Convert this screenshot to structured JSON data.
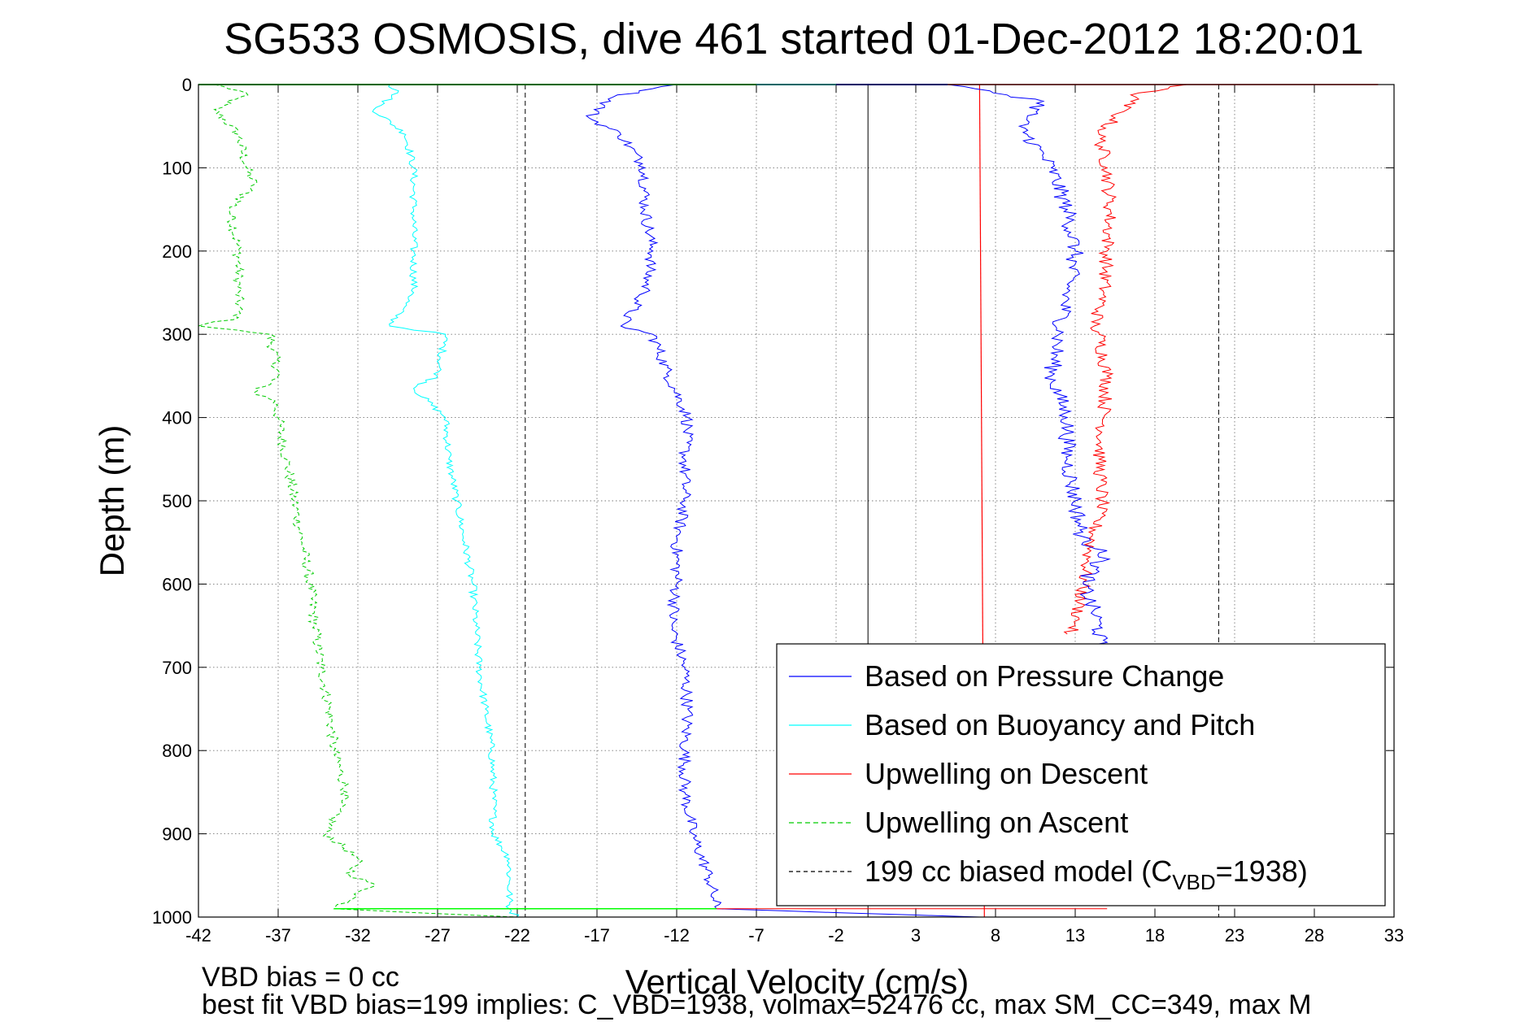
{
  "chart_data": {
    "type": "line",
    "title": "SG533 OSMOSIS, dive 461 started 01-Dec-2012 18:20:01",
    "xlabel": "Vertical Velocity (cm/s)",
    "ylabel": "Depth (m)",
    "xlim": [
      -42,
      33
    ],
    "ylim": [
      0,
      1000
    ],
    "y_reversed": true,
    "grid": true,
    "legend_position": "lower-right",
    "xticks": [
      -42,
      -37,
      -32,
      -27,
      -22,
      -17,
      -12,
      -7,
      -2,
      3,
      8,
      13,
      18,
      23,
      28,
      33
    ],
    "yticks": [
      0,
      100,
      200,
      300,
      400,
      500,
      600,
      700,
      800,
      900,
      1000
    ],
    "series": [
      {
        "name": "Based on Pressure Change",
        "color": "#0000ff",
        "style": "solid",
        "descent": {
          "depth": [
            0,
            15,
            40,
            60,
            100,
            150,
            200,
            250,
            290,
            300,
            350,
            400,
            450,
            500,
            550,
            600,
            650,
            700,
            750,
            800,
            850,
            900,
            950,
            990,
            1000
          ],
          "v": [
            -12,
            -16,
            -17.5,
            -15.5,
            -14,
            -14,
            -13.5,
            -14,
            -15.5,
            -13.5,
            -12.5,
            -11.3,
            -11.5,
            -11.5,
            -12,
            -12,
            -12.3,
            -11.5,
            -11.3,
            -11.5,
            -11.5,
            -11,
            -10,
            -9.5,
            7
          ]
        },
        "ascent": {
          "depth": [
            0,
            20,
            50,
            60,
            100,
            150,
            200,
            250,
            300,
            350,
            400,
            450,
            500,
            550,
            560,
            600,
            650,
            700
          ],
          "v": [
            5,
            11,
            9.5,
            10,
            11.5,
            12.5,
            13,
            12.5,
            12,
            11.5,
            12.5,
            12.5,
            13,
            13.5,
            15,
            13.5,
            14.5,
            14.5
          ]
        }
      },
      {
        "name": "Based on Buoyancy and Pitch",
        "color": "#00ffff",
        "style": "solid",
        "depth": [
          0,
          10,
          30,
          60,
          100,
          150,
          200,
          250,
          290,
          300,
          350,
          365,
          400,
          450,
          500,
          550,
          600,
          650,
          700,
          750,
          800,
          850,
          900,
          930,
          960,
          990,
          1000
        ],
        "v": [
          -30,
          -29.5,
          -31,
          -29,
          -28.5,
          -28.5,
          -28.5,
          -28.5,
          -30,
          -26.5,
          -27,
          -28.5,
          -26.5,
          -26.3,
          -25.8,
          -25.3,
          -24.8,
          -24.6,
          -24.4,
          -24,
          -23.6,
          -23.5,
          -23.5,
          -22.5,
          -22.5,
          -22.5,
          -22
        ]
      },
      {
        "name": "Upwelling on Descent",
        "color": "#ff0000",
        "style": "solid",
        "model": {
          "depth": [
            0,
            1000
          ],
          "v": [
            7,
            7.3
          ]
        },
        "trace": {
          "depth": [
            0,
            10,
            20,
            40,
            60,
            100,
            150,
            200,
            250,
            290,
            300,
            350,
            400,
            450,
            500,
            550,
            600,
            650,
            660
          ],
          "v": [
            20,
            17,
            16.5,
            15.5,
            14.5,
            15,
            15.2,
            15,
            14.8,
            14.2,
            14.5,
            15,
            14.8,
            14.5,
            14.7,
            14,
            13.5,
            13,
            12.5
          ]
        }
      },
      {
        "name": "Upwelling on Ascent",
        "color": "#00cc00",
        "style": "dashed",
        "depth": [
          0,
          10,
          30,
          60,
          100,
          120,
          150,
          200,
          250,
          280,
          290,
          300,
          350,
          370,
          380,
          400,
          450,
          500,
          550,
          600,
          650,
          700,
          750,
          800,
          850,
          860,
          900,
          930,
          950,
          960,
          980,
          990,
          1000
        ],
        "v": [
          -41,
          -39,
          -41,
          -39.5,
          -39,
          -38.5,
          -40,
          -39.5,
          -39.5,
          -39.5,
          -42,
          -37.5,
          -37,
          -38.5,
          -37.2,
          -37,
          -36.5,
          -36,
          -35.5,
          -35,
          -34.7,
          -34.3,
          -33.8,
          -33.5,
          -32.7,
          -33,
          -34,
          -32,
          -32.5,
          -31,
          -32.5,
          -33.5,
          -22
        ]
      },
      {
        "name": "199 cc biased model (C_VBD=1938)",
        "legend_label": "199 cc biased model (C",
        "legend_sub": "VBD",
        "legend_tail": "=1938)",
        "color": "#000000",
        "style": "dashed",
        "x_values": [
          -21.5,
          22
        ]
      }
    ],
    "reference_lines": [
      {
        "x": 0,
        "color": "#000000",
        "style": "solid"
      }
    ]
  },
  "footer": {
    "line1": "VBD bias = 0 cc",
    "line2": "best fit VBD bias=199 implies: C_VBD=1938, volmax=52476 cc, max SM_CC=349, max M"
  }
}
